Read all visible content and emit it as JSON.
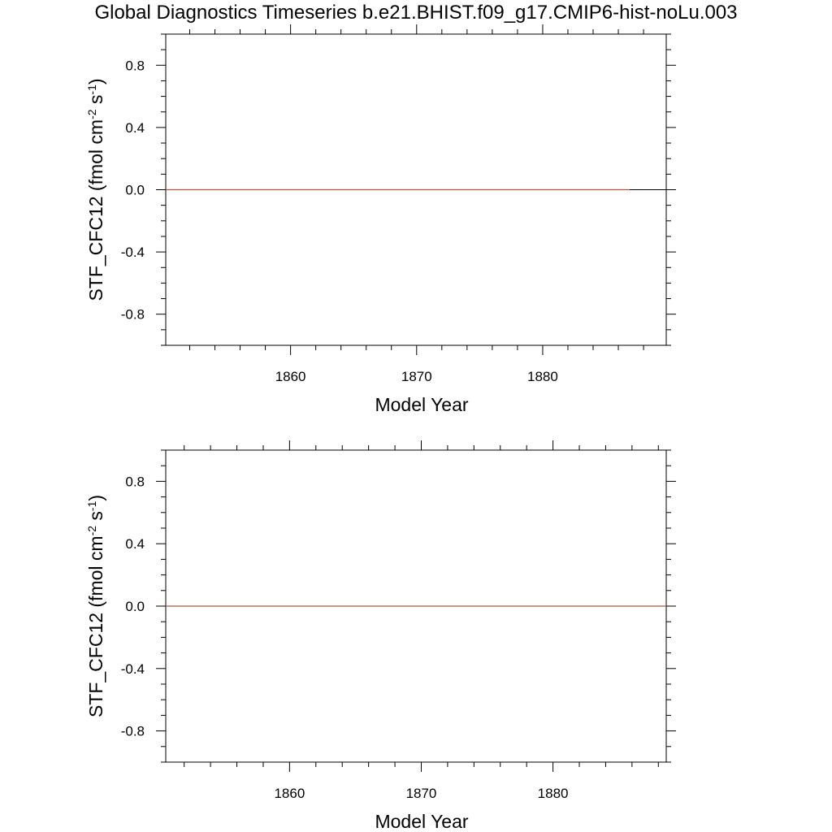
{
  "title": "Global Diagnostics Timeseries b.e21.BHIST.f09_g17.CMIP6-hist-noLu.003",
  "colors": {
    "series": "#b5533c",
    "frame": "#000000",
    "zero_line": "#000000"
  },
  "chart_data": [
    {
      "type": "line",
      "xlabel": "Model Year",
      "ylabel": {
        "main": "STF_CFC12 (fmol cm",
        "exp1": "-2",
        "mid": " s",
        "exp2": "-1",
        "end": ")"
      },
      "xlim": [
        1850.1,
        1889.8
      ],
      "ylim": [
        -1.0,
        1.0
      ],
      "xticks": [
        1860,
        1870,
        1880
      ],
      "xtick_labels": [
        "1860",
        "1870",
        "1880"
      ],
      "yticks": [
        0.8,
        0.4,
        0.0,
        -0.4,
        -0.8
      ],
      "ytick_labels": [
        "0.8",
        "0.4",
        "0.0",
        "-0.4",
        "-0.8"
      ],
      "grid": false,
      "series": [
        {
          "x": [
            1850.1,
            1886.9
          ],
          "y": [
            0.0,
            0.0
          ]
        }
      ]
    },
    {
      "type": "line",
      "xlabel": "Model Year",
      "ylabel": {
        "main": "STF_CFC12 (fmol cm",
        "exp1": "-2",
        "mid": " s",
        "exp2": "-1",
        "end": ")"
      },
      "xlim": [
        1850.6,
        1888.6
      ],
      "ylim": [
        -1.0,
        1.0
      ],
      "xticks": [
        1860,
        1870,
        1880
      ],
      "xtick_labels": [
        "1860",
        "1870",
        "1880"
      ],
      "yticks": [
        0.8,
        0.4,
        0.0,
        -0.4,
        -0.8
      ],
      "ytick_labels": [
        "0.8",
        "0.4",
        "0.0",
        "-0.4",
        "-0.8"
      ],
      "grid": false,
      "series": [
        {
          "x": [
            1850.6,
            1888.6
          ],
          "y": [
            0.0,
            0.0
          ]
        }
      ]
    }
  ]
}
